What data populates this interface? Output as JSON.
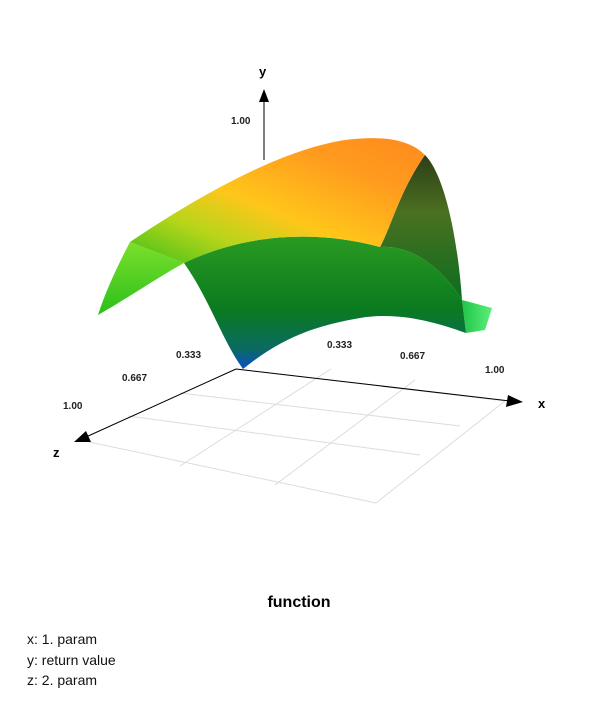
{
  "chart_data": {
    "type": "surface3d",
    "title": "function",
    "axes": {
      "x": {
        "name": "x",
        "ticks": [
          "0.333",
          "0.667",
          "1.00"
        ],
        "range": [
          0,
          1
        ]
      },
      "y": {
        "name": "y",
        "ticks": [
          "1.00"
        ],
        "range": [
          0,
          1
        ]
      },
      "z": {
        "name": "z",
        "ticks": [
          "0.333",
          "0.667",
          "1.00"
        ],
        "range": [
          0,
          1
        ]
      }
    },
    "grid": true,
    "legend": [
      "x: 1. param",
      "y: return value",
      "z: 2. param"
    ]
  }
}
